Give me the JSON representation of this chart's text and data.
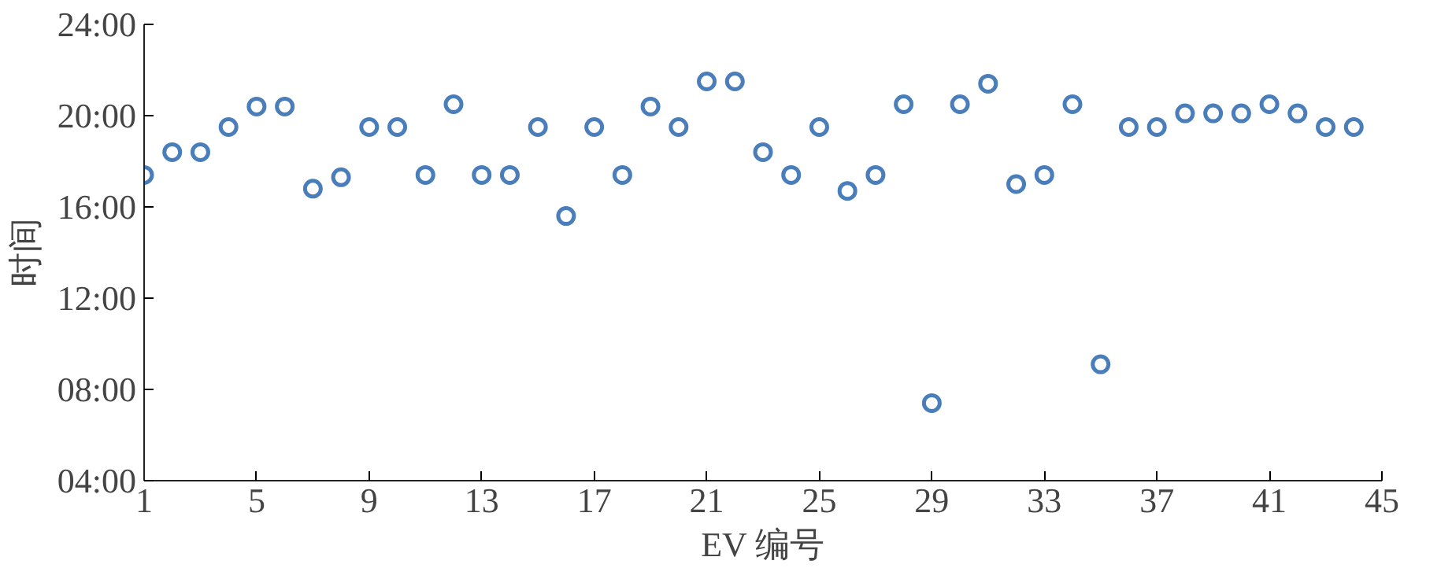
{
  "chart_data": {
    "type": "scatter",
    "xlabel": "EV 编号",
    "ylabel": "时间",
    "x": [
      1,
      2,
      3,
      4,
      5,
      6,
      7,
      8,
      9,
      10,
      11,
      12,
      13,
      14,
      15,
      16,
      17,
      18,
      19,
      20,
      21,
      22,
      23,
      24,
      25,
      26,
      27,
      28,
      29,
      30,
      31,
      32,
      33,
      34,
      35,
      36,
      37,
      38,
      39,
      40,
      41,
      42,
      43,
      44
    ],
    "series": [
      {
        "color": "#4a7ebb",
        "values": [
          17.4,
          18.4,
          18.4,
          19.5,
          20.4,
          20.4,
          16.8,
          17.3,
          19.5,
          19.5,
          17.4,
          20.5,
          17.4,
          17.4,
          19.5,
          15.6,
          19.5,
          17.4,
          20.4,
          19.5,
          21.5,
          21.5,
          18.4,
          17.4,
          19.5,
          16.7,
          17.4,
          20.5,
          7.4,
          20.5,
          21.4,
          17.0,
          17.4,
          20.5,
          9.1,
          19.5,
          19.5,
          20.1,
          20.1,
          20.1,
          20.5,
          20.1,
          19.5,
          19.5
        ]
      }
    ],
    "xlim": [
      1,
      45
    ],
    "xticks": [
      1,
      5,
      9,
      13,
      17,
      21,
      25,
      29,
      33,
      37,
      41,
      45
    ],
    "ylim": [
      4,
      24
    ],
    "yticks": [
      {
        "value": 4,
        "label": "04:00"
      },
      {
        "value": 8,
        "label": "08:00"
      },
      {
        "value": 12,
        "label": "12:00"
      },
      {
        "value": 16,
        "label": "16:00"
      },
      {
        "value": 20,
        "label": "20:00"
      },
      {
        "value": 24,
        "label": "24:00"
      }
    ],
    "grid": false,
    "marker": "circle"
  }
}
